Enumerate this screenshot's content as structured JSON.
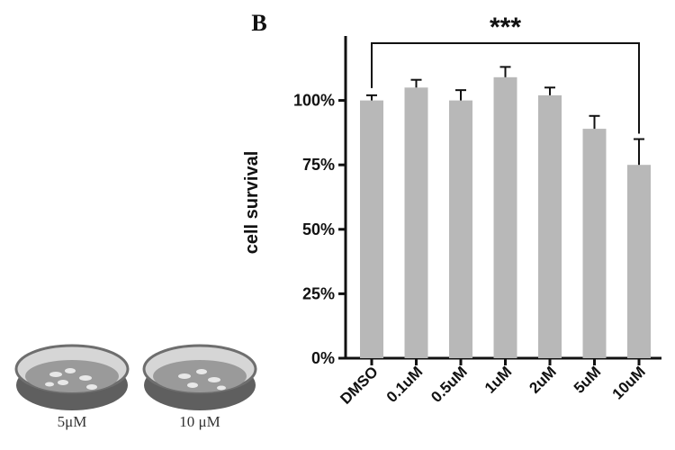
{
  "panel_a": {
    "dish_labels": [
      "5μM",
      "10 μM"
    ]
  },
  "panel_b": {
    "letter": "B",
    "significance": "***"
  },
  "colors": {
    "bar": "#b8b8b8",
    "axis": "#111111",
    "dish_fill": "#9a9a9a",
    "dish_rim": "#6e6e6e"
  },
  "chart_data": {
    "type": "bar",
    "categories": [
      "DMSO",
      "0.1uM",
      "0.5uM",
      "1uM",
      "2uM",
      "5uM",
      "10uM"
    ],
    "values": [
      100,
      105,
      100,
      109,
      102,
      89,
      75
    ],
    "errors": [
      2,
      3,
      4,
      4,
      3,
      5,
      10
    ],
    "title": "",
    "xlabel": "",
    "ylabel": "cell survival",
    "ylim": [
      0,
      125
    ],
    "yticks": [
      0,
      25,
      50,
      75,
      100
    ],
    "ytick_labels": [
      "0%",
      "25%",
      "50%",
      "75%",
      "100%"
    ],
    "grid": false,
    "legend": "none",
    "significance_bracket": {
      "from": "DMSO",
      "to": "10uM",
      "label": "***"
    }
  }
}
